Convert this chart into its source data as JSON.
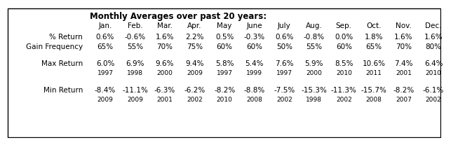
{
  "title": "Monthly Averages over past 20 years:",
  "months": [
    "Jan.",
    "Feb.",
    "Mar.",
    "Apr.",
    "May",
    "June",
    "July",
    "Aug.",
    "Sep.",
    "Oct.",
    "Nov.",
    "Dec."
  ],
  "pct_return_label": "% Return",
  "pct_return": [
    "0.6%",
    "-0.6%",
    "1.6%",
    "2.2%",
    "0.5%",
    "-0.3%",
    "0.6%",
    "-0.8%",
    "0.0%",
    "1.8%",
    "1.6%",
    "1.6%"
  ],
  "gain_freq_label": "Gain Frequency",
  "gain_freq": [
    "65%",
    "55%",
    "70%",
    "75%",
    "60%",
    "60%",
    "50%",
    "55%",
    "60%",
    "65%",
    "70%",
    "80%"
  ],
  "max_return_label": "Max Return",
  "max_return": [
    "6.0%",
    "6.9%",
    "9.6%",
    "9.4%",
    "5.8%",
    "5.4%",
    "7.6%",
    "5.9%",
    "8.5%",
    "10.6%",
    "7.4%",
    "6.4%"
  ],
  "max_return_year": [
    "1997",
    "1998",
    "2000",
    "2009",
    "1997",
    "1999",
    "1997",
    "2000",
    "2010",
    "2011",
    "2001",
    "2010"
  ],
  "min_return_label": "Min Return",
  "min_return": [
    "-8.4%",
    "-11.1%",
    "-6.3%",
    "-6.2%",
    "-8.2%",
    "-8.8%",
    "-7.5%",
    "-15.3%",
    "-11.3%",
    "-15.7%",
    "-8.2%",
    "-6.1%"
  ],
  "min_return_year": [
    "2009",
    "2009",
    "2001",
    "2002",
    "2010",
    "2008",
    "2002",
    "1998",
    "2002",
    "2008",
    "2007",
    "2002"
  ],
  "bg_color": "#ffffff",
  "border_color": "#000000",
  "font_color": "#000000",
  "title_fontsize": 8.5,
  "header_fontsize": 7.5,
  "data_fontsize": 7.5,
  "year_fontsize": 6.5,
  "label_fontsize": 7.5
}
